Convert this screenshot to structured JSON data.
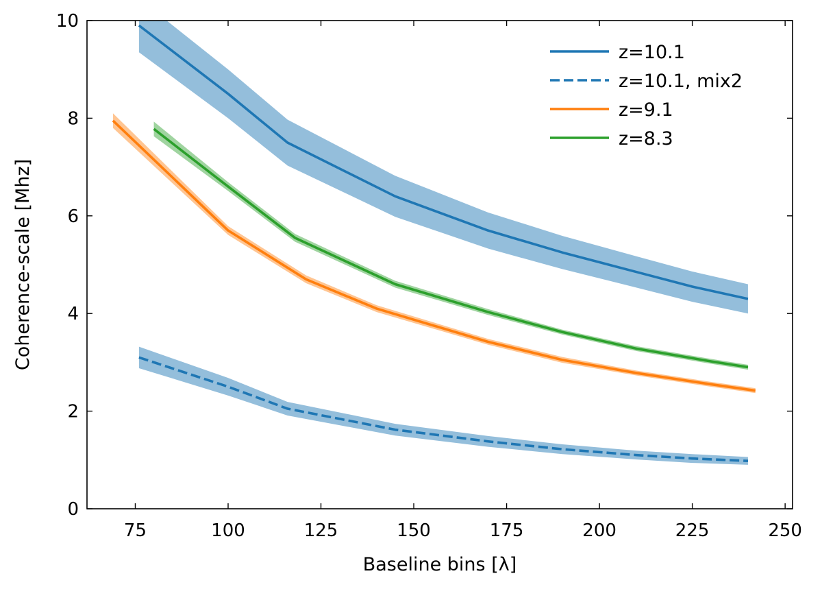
{
  "chart_data": {
    "type": "line",
    "xlabel": "Baseline bins [λ]",
    "ylabel": "Coherence-scale [Mhz]",
    "xlim": [
      62,
      252
    ],
    "ylim": [
      0,
      10
    ],
    "xticks": [
      "75",
      "100",
      "125",
      "150",
      "175",
      "200",
      "225",
      "250"
    ],
    "yticks": [
      "0",
      "2",
      "4",
      "6",
      "8",
      "10"
    ],
    "legend_position": "top-right",
    "series": [
      {
        "name": "z=10.1",
        "color": "#1f77b4",
        "dash": "solid",
        "x": [
          76,
          100,
          116,
          145,
          170,
          190,
          210,
          225,
          240
        ],
        "y": [
          9.9,
          8.5,
          7.5,
          6.4,
          5.7,
          5.25,
          4.85,
          4.55,
          4.3
        ],
        "band": [
          0.55,
          0.5,
          0.47,
          0.42,
          0.37,
          0.34,
          0.32,
          0.31,
          0.3
        ],
        "band_opacity": 0.48
      },
      {
        "name": "z=10.1, mix2",
        "color": "#1f77b4",
        "dash": "dashed",
        "x": [
          76,
          100,
          116,
          145,
          170,
          190,
          210,
          225,
          240
        ],
        "y": [
          3.1,
          2.5,
          2.05,
          1.62,
          1.38,
          1.22,
          1.1,
          1.03,
          0.98
        ],
        "band": [
          0.22,
          0.18,
          0.14,
          0.12,
          0.11,
          0.1,
          0.09,
          0.09,
          0.08
        ],
        "band_opacity": 0.48
      },
      {
        "name": "z=9.1",
        "color": "#ff7f0e",
        "dash": "solid",
        "x": [
          69,
          100,
          121,
          140,
          170,
          190,
          210,
          230,
          242
        ],
        "y": [
          7.95,
          5.7,
          4.7,
          4.1,
          3.42,
          3.05,
          2.78,
          2.55,
          2.42
        ],
        "band": [
          0.15,
          0.09,
          0.08,
          0.07,
          0.06,
          0.06,
          0.05,
          0.05,
          0.05
        ],
        "band_opacity": 0.45
      },
      {
        "name": "z=8.3",
        "color": "#2ca02c",
        "dash": "solid",
        "x": [
          80,
          100,
          118,
          145,
          170,
          190,
          210,
          230,
          240
        ],
        "y": [
          7.78,
          6.6,
          5.55,
          4.6,
          4.03,
          3.62,
          3.28,
          3.02,
          2.9
        ],
        "band": [
          0.15,
          0.09,
          0.08,
          0.07,
          0.06,
          0.05,
          0.05,
          0.05,
          0.05
        ],
        "band_opacity": 0.45
      }
    ]
  }
}
